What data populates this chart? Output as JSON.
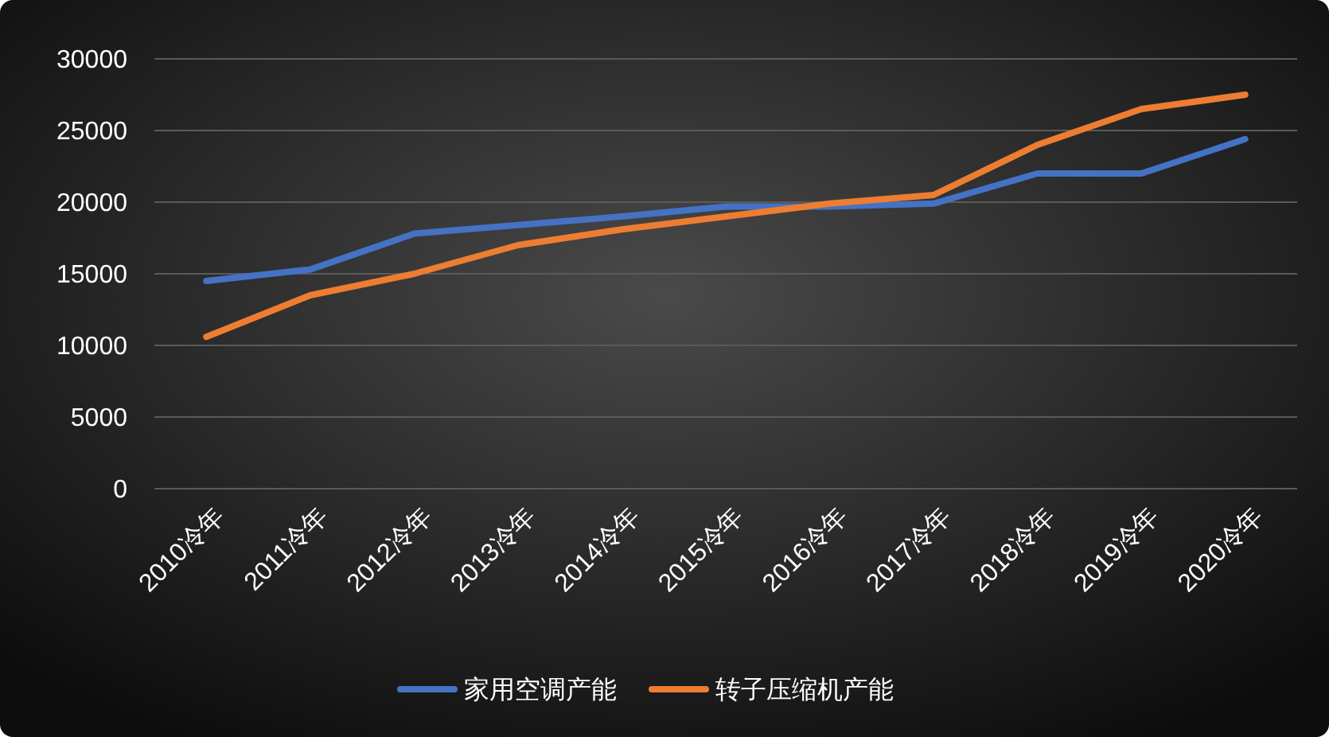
{
  "chart_data": {
    "type": "line",
    "categories": [
      "2010冷年",
      "2011冷年",
      "2012冷年",
      "2013冷年",
      "2014冷年",
      "2015冷年",
      "2016冷年",
      "2017冷年",
      "2018冷年",
      "2019冷年",
      "2020冷年"
    ],
    "series": [
      {
        "name": "家用空调产能",
        "color": "#4472c4",
        "values": [
          14500,
          15300,
          17800,
          18400,
          19000,
          19700,
          19700,
          19900,
          22000,
          22000,
          24400
        ]
      },
      {
        "name": "转子压缩机产能",
        "color": "#ed7d31",
        "values": [
          10600,
          13500,
          15000,
          17000,
          18100,
          19000,
          19900,
          20500,
          24000,
          26500,
          27500
        ]
      }
    ],
    "ylim": [
      0,
      30000
    ],
    "yticks": [
      0,
      5000,
      10000,
      15000,
      20000,
      25000,
      30000
    ],
    "grid": "y",
    "legend": "bottom",
    "marker": "none"
  }
}
